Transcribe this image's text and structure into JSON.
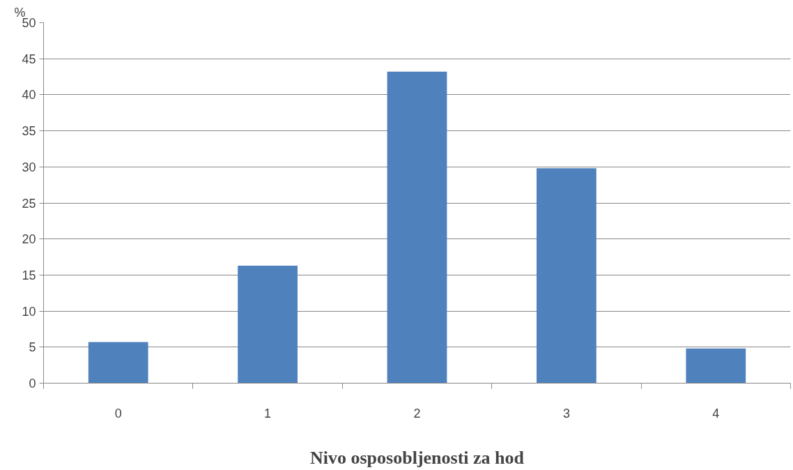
{
  "chart_data": {
    "type": "bar",
    "xlabel": "Nivo osposobljenosti za hod",
    "ylabel": "%",
    "categories": [
      "0",
      "1",
      "2",
      "3",
      "4"
    ],
    "values": [
      5.7,
      16.3,
      43.2,
      29.8,
      4.8
    ],
    "color": "#4f81bd",
    "ylim": [
      0,
      50
    ],
    "yticks": [
      0,
      5,
      10,
      15,
      20,
      25,
      30,
      35,
      40,
      45,
      50
    ],
    "grid": "y"
  }
}
